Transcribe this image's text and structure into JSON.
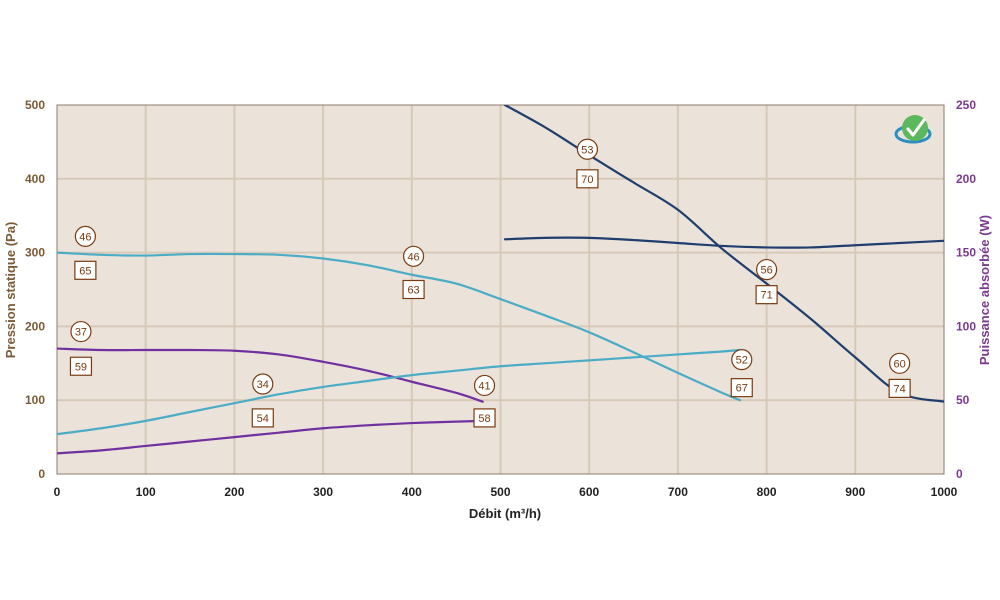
{
  "chart_data": {
    "type": "line",
    "xlabel": "Débit (m³/h)",
    "ylabel_left": "Pression statique (Pa)",
    "ylabel_right": "Puissance absorbée (W)",
    "xlim": [
      0,
      1000
    ],
    "ylim_left": [
      0,
      500
    ],
    "ylim_right": [
      0,
      250
    ],
    "x_ticks": [
      "0",
      "100",
      "200",
      "300",
      "400",
      "500",
      "600",
      "700",
      "800",
      "900",
      "1000"
    ],
    "y_left_ticks": [
      "0",
      "100",
      "200",
      "300",
      "400",
      "500"
    ],
    "y_right_ticks": [
      "0",
      "50",
      "100",
      "150",
      "200",
      "250"
    ],
    "grid": true,
    "colors": {
      "plot_bg": "#ebe3da",
      "grid": "#d6c9b8",
      "purple": "#7030a0",
      "light_blue": "#4bacc6",
      "dark_blue": "#1f3e6e",
      "noise_marker": "#7a3a10",
      "left_axis_text": "#7a5a35",
      "right_axis_text": "#7b3a92",
      "logo_green": "#5cb85c",
      "logo_blue": "#2a8fbf"
    },
    "series": [
      {
        "axis": "left",
        "color": "#7030a0",
        "points": [
          [
            0,
            170
          ],
          [
            50,
            168
          ],
          [
            100,
            168
          ],
          [
            150,
            168
          ],
          [
            200,
            167
          ],
          [
            250,
            162
          ],
          [
            300,
            152
          ],
          [
            350,
            140
          ],
          [
            400,
            125
          ],
          [
            450,
            110
          ],
          [
            480,
            98
          ]
        ]
      },
      {
        "axis": "right",
        "color": "#7030a0",
        "points": [
          [
            0,
            14
          ],
          [
            50,
            16
          ],
          [
            100,
            19
          ],
          [
            150,
            22
          ],
          [
            200,
            25
          ],
          [
            250,
            28
          ],
          [
            300,
            31
          ],
          [
            350,
            33
          ],
          [
            400,
            34.5
          ],
          [
            450,
            35.5
          ],
          [
            480,
            36
          ]
        ]
      },
      {
        "axis": "left",
        "color": "#4bacc6",
        "points": [
          [
            0,
            300
          ],
          [
            50,
            297
          ],
          [
            100,
            296
          ],
          [
            150,
            298
          ],
          [
            200,
            298
          ],
          [
            250,
            297
          ],
          [
            300,
            292
          ],
          [
            350,
            283
          ],
          [
            400,
            270
          ],
          [
            450,
            258
          ],
          [
            500,
            237
          ],
          [
            550,
            215
          ],
          [
            600,
            192
          ],
          [
            650,
            165
          ],
          [
            700,
            137
          ],
          [
            750,
            110
          ],
          [
            770,
            100
          ]
        ]
      },
      {
        "axis": "right",
        "color": "#4bacc6",
        "points": [
          [
            0,
            27
          ],
          [
            50,
            31
          ],
          [
            100,
            36
          ],
          [
            150,
            42
          ],
          [
            200,
            48
          ],
          [
            250,
            54
          ],
          [
            300,
            59
          ],
          [
            350,
            63
          ],
          [
            400,
            67
          ],
          [
            450,
            70
          ],
          [
            500,
            73
          ],
          [
            550,
            75
          ],
          [
            600,
            77
          ],
          [
            650,
            79
          ],
          [
            700,
            81
          ],
          [
            750,
            83
          ],
          [
            770,
            84
          ]
        ]
      },
      {
        "axis": "left",
        "color": "#1f3e6e",
        "points": [
          [
            505,
            500
          ],
          [
            550,
            470
          ],
          [
            600,
            432
          ],
          [
            650,
            395
          ],
          [
            700,
            358
          ],
          [
            750,
            305
          ],
          [
            800,
            258
          ],
          [
            850,
            210
          ],
          [
            900,
            158
          ],
          [
            950,
            110
          ],
          [
            1000,
            98
          ]
        ]
      },
      {
        "axis": "right",
        "color": "#1f3e6e",
        "points": [
          [
            505,
            159
          ],
          [
            550,
            160
          ],
          [
            600,
            160
          ],
          [
            650,
            158.5
          ],
          [
            700,
            156.5
          ],
          [
            750,
            154.5
          ],
          [
            800,
            153.5
          ],
          [
            850,
            153.5
          ],
          [
            900,
            155
          ],
          [
            950,
            156.5
          ],
          [
            1000,
            158
          ]
        ]
      }
    ],
    "noise_markers": [
      {
        "x": 32,
        "y": 322,
        "value": "46",
        "shape": "circle"
      },
      {
        "x": 32,
        "y": 276,
        "value": "65",
        "shape": "square"
      },
      {
        "x": 27,
        "y": 193,
        "value": "37",
        "shape": "circle"
      },
      {
        "x": 27,
        "y": 146,
        "value": "59",
        "shape": "square"
      },
      {
        "x": 232,
        "y": 122,
        "value": "34",
        "shape": "circle"
      },
      {
        "x": 232,
        "y": 76,
        "value": "54",
        "shape": "square"
      },
      {
        "x": 402,
        "y": 295,
        "value": "46",
        "shape": "circle"
      },
      {
        "x": 402,
        "y": 250,
        "value": "63",
        "shape": "square"
      },
      {
        "x": 482,
        "y": 120,
        "value": "41",
        "shape": "circle"
      },
      {
        "x": 482,
        "y": 76,
        "value": "58",
        "shape": "square"
      },
      {
        "x": 598,
        "y": 440,
        "value": "53",
        "shape": "circle"
      },
      {
        "x": 598,
        "y": 400,
        "value": "70",
        "shape": "square"
      },
      {
        "x": 772,
        "y": 155,
        "value": "52",
        "shape": "circle"
      },
      {
        "x": 772,
        "y": 117,
        "value": "67",
        "shape": "square"
      },
      {
        "x": 800,
        "y": 277,
        "value": "56",
        "shape": "circle"
      },
      {
        "x": 800,
        "y": 243,
        "value": "71",
        "shape": "square"
      },
      {
        "x": 950,
        "y": 150,
        "value": "60",
        "shape": "circle"
      },
      {
        "x": 950,
        "y": 116,
        "value": "74",
        "shape": "square"
      }
    ]
  }
}
